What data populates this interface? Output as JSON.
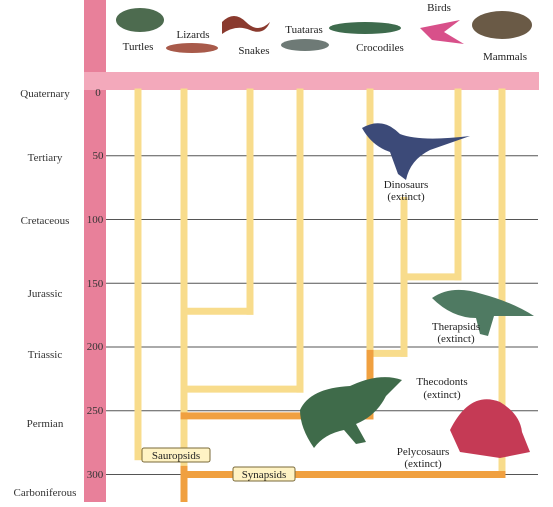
{
  "periods": [
    {
      "name": "Quaternary",
      "mya": 0
    },
    {
      "name": "Tertiary",
      "mya": 50
    },
    {
      "name": "Cretaceous",
      "mya": 100
    },
    {
      "name": "Jurassic",
      "mya": 150
    },
    {
      "name": "Triassic",
      "mya": 200
    },
    {
      "name": "Permian",
      "mya": 250
    },
    {
      "name": "Carboniferous",
      "mya": 300
    }
  ],
  "ticks": [
    "0",
    "50",
    "100",
    "150",
    "200",
    "250",
    "300"
  ],
  "living_groups": [
    "Turtles",
    "Lizards",
    "Snakes",
    "Tuataras",
    "Crocodiles",
    "Birds",
    "Mammals"
  ],
  "extinct_groups": {
    "dinosaurs": {
      "name": "Dinosaurs",
      "status": "(extinct)"
    },
    "therapsids": {
      "name": "Therapsids",
      "status": "(extinct)"
    },
    "thecodonts": {
      "name": "Thecodonts",
      "status": "(extinct)"
    },
    "pelycosaurs": {
      "name": "Pelycosaurs",
      "status": "(extinct)"
    }
  },
  "stem_groups": {
    "sauropsids": "Sauropsids",
    "synapsids": "Synapsids"
  },
  "colors": {
    "timeline_bar": "#e8809a",
    "header_band": "#f3a9bb",
    "branch_light": "#f8dc8c",
    "branch_dark": "#f0a040",
    "box_bg": "#fff3c4",
    "box_border": "#7a6a3a"
  }
}
